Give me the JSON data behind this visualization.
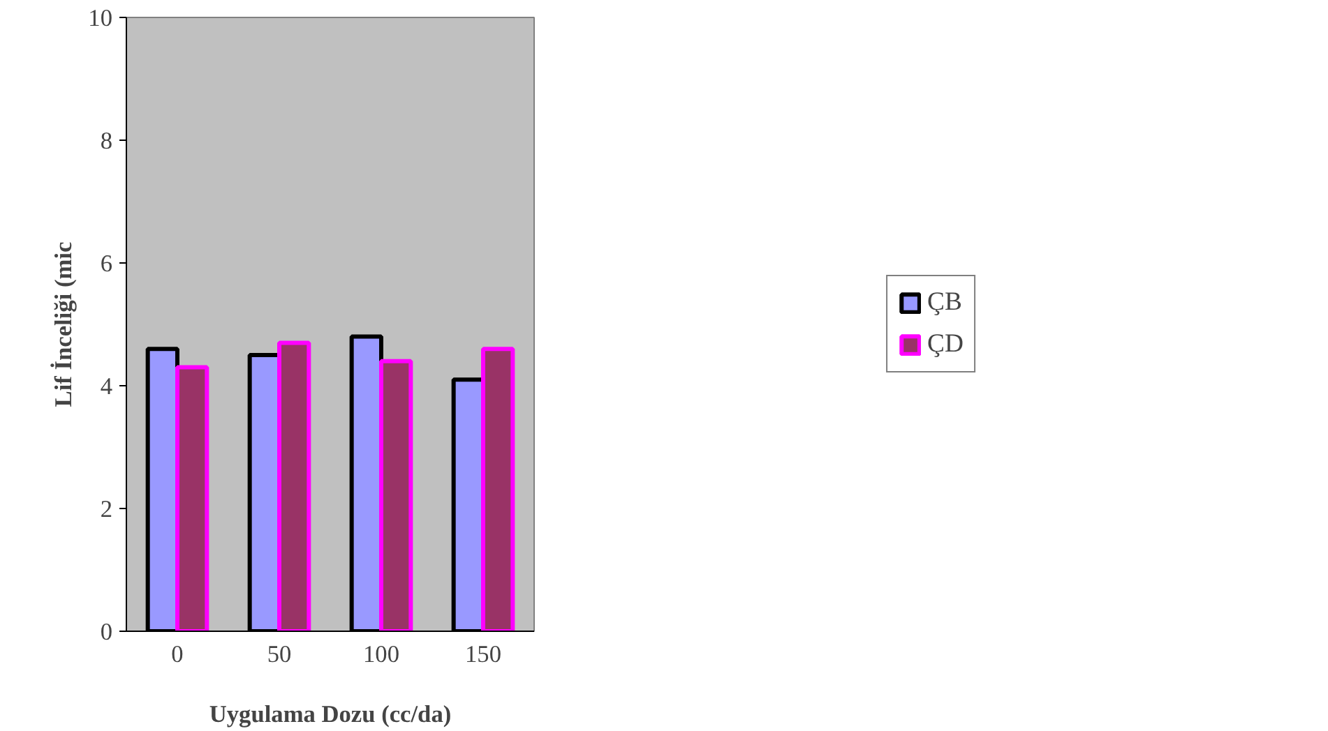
{
  "chart_data": {
    "type": "bar",
    "xlabel": "Uygulama Dozu (cc/da)",
    "ylabel": "Lif İnceliği (mic",
    "categories": [
      "0",
      "50",
      "100",
      "150"
    ],
    "ylim": [
      0,
      10
    ],
    "yticks": [
      0,
      2,
      4,
      6,
      8,
      10
    ],
    "grid": false,
    "legend": "right",
    "series": [
      {
        "name": "ÇB",
        "color": "#9999ff",
        "values": [
          4.6,
          4.5,
          4.8,
          4.1
        ]
      },
      {
        "name": "ÇD",
        "color": "#993366",
        "values": [
          4.3,
          4.7,
          4.4,
          4.6
        ]
      }
    ]
  }
}
